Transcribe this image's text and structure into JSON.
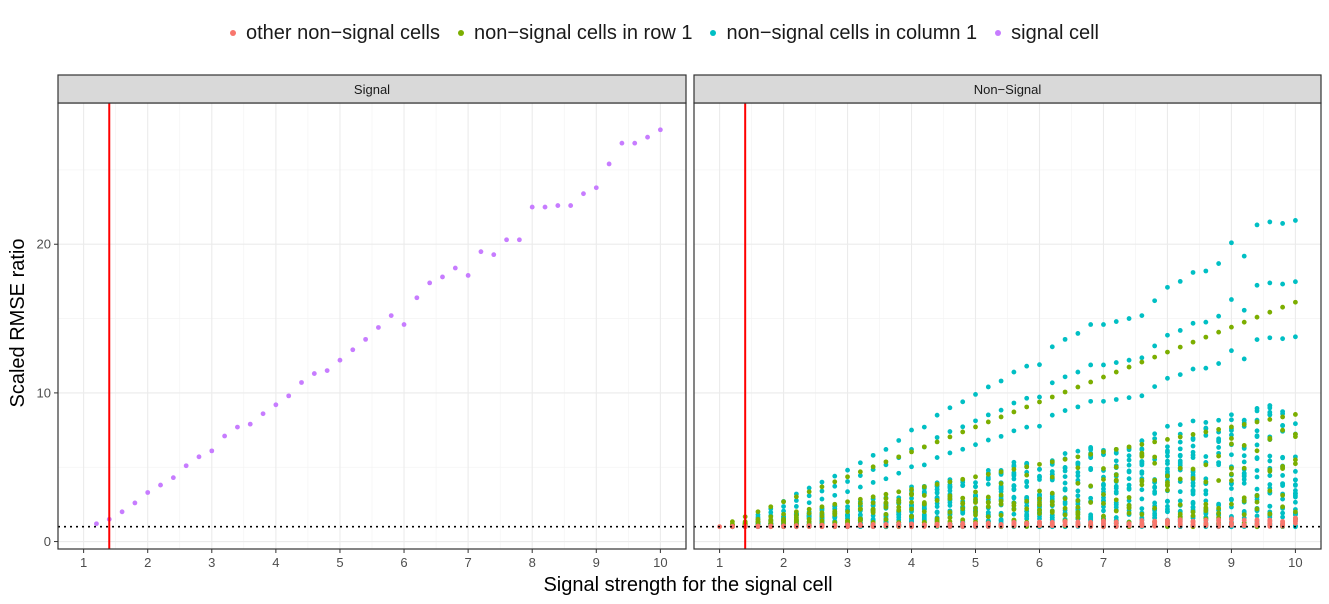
{
  "chart_data": {
    "type": "scatter",
    "legend": [
      {
        "name": "other non−signal cells",
        "color": "#F8766D"
      },
      {
        "name": "non−signal cells in row 1",
        "color": "#7CAE00"
      },
      {
        "name": "non−signal cells in column 1",
        "color": "#00BFC4"
      },
      {
        "name": "signal cell",
        "color": "#C77CFF"
      }
    ],
    "xlabel": "Signal strength for the signal cell",
    "ylabel": "Scaled RMSE ratio",
    "xlim": [
      0.6,
      10.4
    ],
    "ylim": [
      -0.5,
      29.5
    ],
    "x_ticks": [
      "1",
      "2",
      "3",
      "4",
      "5",
      "6",
      "7",
      "8",
      "9",
      "10"
    ],
    "y_ticks": [
      "0",
      "10",
      "20"
    ],
    "reference_vline": 1.4,
    "reference_hline": 1,
    "panels": [
      {
        "strip": "Signal",
        "series": [
          {
            "name": "signal cell",
            "color": "#C77CFF",
            "x": [
              1.2,
              1.4,
              1.6,
              1.8,
              2.0,
              2.2,
              2.4,
              2.6,
              2.8,
              3.0,
              3.2,
              3.4,
              3.6,
              3.8,
              4.0,
              4.2,
              4.4,
              4.6,
              4.8,
              5.0,
              5.2,
              5.4,
              5.6,
              5.8,
              6.0,
              6.2,
              6.4,
              6.6,
              6.8,
              7.0,
              7.2,
              7.4,
              7.6,
              7.8,
              8.0,
              8.2,
              8.4,
              8.6,
              8.8,
              9.0,
              9.2,
              9.4,
              9.6,
              9.8,
              10.0
            ],
            "y": [
              1.2,
              1.5,
              2.0,
              2.6,
              3.3,
              3.8,
              4.3,
              5.1,
              5.7,
              6.1,
              7.1,
              7.7,
              7.9,
              8.6,
              9.2,
              9.8,
              10.7,
              11.3,
              11.5,
              12.2,
              12.9,
              13.6,
              14.4,
              15.2,
              14.6,
              16.4,
              17.4,
              17.8,
              18.4,
              17.9,
              19.5,
              19.3,
              20.3,
              20.3,
              22.5,
              22.5,
              22.6,
              22.6,
              23.4,
              23.8,
              25.4,
              26.8,
              26.8,
              27.2,
              27.7
            ]
          }
        ]
      },
      {
        "strip": "Non−Signal",
        "cells_per_step": 30,
        "series": [
          {
            "name": "other non−signal cells",
            "color": "#F8766D",
            "baseline": 1.0,
            "spread_at_10": 1.6
          },
          {
            "name": "non−signal cells in row 1",
            "color": "#7CAE00",
            "baseline": 1.0,
            "top_at_10": 16.1
          },
          {
            "name": "non−signal cells in column 1",
            "color": "#00BFC4",
            "baseline": 1.0,
            "top_at_10": 21.5
          }
        ],
        "column1_upper_envelope": {
          "x": [
            1.2,
            1.4,
            1.6,
            1.8,
            2.0,
            2.2,
            2.4,
            2.6,
            2.8,
            3.0,
            3.2,
            3.4,
            3.6,
            3.8,
            4.0,
            4.2,
            4.4,
            4.6,
            4.8,
            5.0,
            5.2,
            5.4,
            5.6,
            5.8,
            6.0,
            6.2,
            6.4,
            6.6,
            6.8,
            7.0,
            7.2,
            7.4,
            7.6,
            7.8,
            8.0,
            8.2,
            8.4,
            8.6,
            8.8,
            9.0,
            9.2,
            9.4,
            9.6,
            9.8,
            10.0
          ],
          "y": [
            1.1,
            1.3,
            1.8,
            2.2,
            2.7,
            3.2,
            3.6,
            4.0,
            4.4,
            4.8,
            5.3,
            5.8,
            6.2,
            6.8,
            7.5,
            7.7,
            8.5,
            9.0,
            9.4,
            9.9,
            10.4,
            10.8,
            11.4,
            11.8,
            11.9,
            13.1,
            13.6,
            14.0,
            14.6,
            14.6,
            14.8,
            15.0,
            15.2,
            16.2,
            17.1,
            17.5,
            18.1,
            18.2,
            18.7,
            20.1,
            19.2,
            21.3,
            21.5,
            21.4,
            21.6
          ]
        }
      }
    ]
  }
}
